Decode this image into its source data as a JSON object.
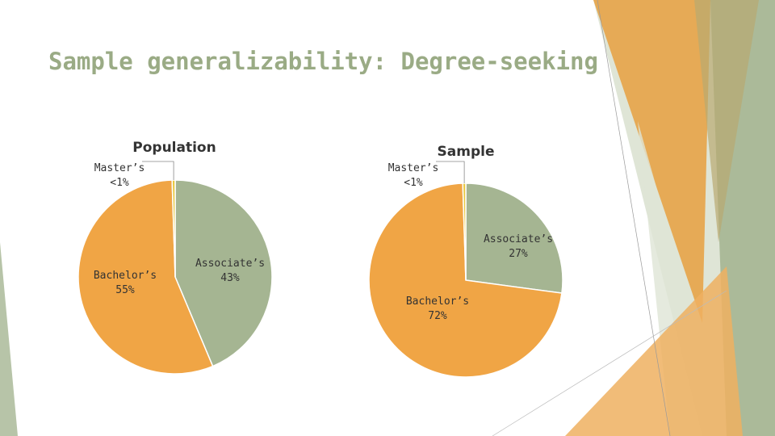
{
  "slide_title": "Sample generalizability: Degree-seeking",
  "chart_data": [
    {
      "type": "pie",
      "title": "Population",
      "categories": [
        "Associate’s",
        "Bachelor’s",
        "Master’s"
      ],
      "values": [
        43,
        55,
        0.5
      ],
      "value_labels": [
        "43%",
        "55%",
        "<1%"
      ],
      "colors": [
        "#a5b592",
        "#f0a545",
        "#e8c840"
      ]
    },
    {
      "type": "pie",
      "title": "Sample",
      "categories": [
        "Associate’s",
        "Bachelor’s",
        "Master’s"
      ],
      "values": [
        27,
        72,
        0.5
      ],
      "value_labels": [
        "27%",
        "72%",
        "<1%"
      ],
      "colors": [
        "#a5b592",
        "#f0a545",
        "#e8c840"
      ]
    }
  ]
}
